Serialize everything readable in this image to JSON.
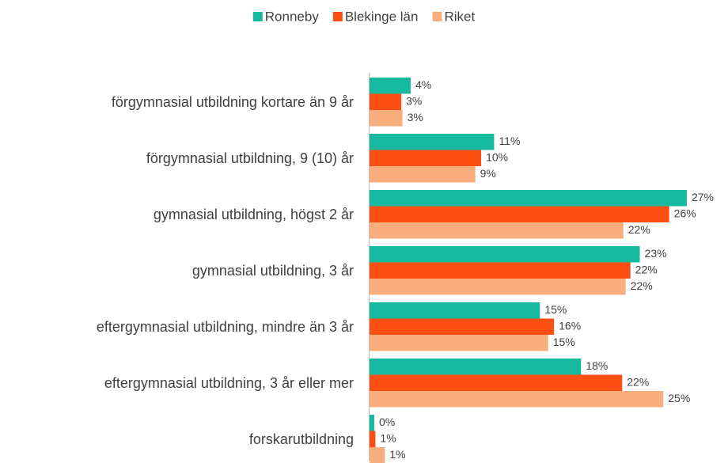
{
  "chart_data": {
    "type": "barh",
    "categories": [
      "förgymnasial utbildning kortare än 9 år",
      "förgymnasial utbildning, 9 (10) år",
      "gymnasial utbildning, högst 2 år",
      "gymnasial utbildning, 3 år",
      "eftergymnasial utbildning, mindre än 3 år",
      "eftergymnasial utbildning, 3 år eller mer",
      "forskarutbildning"
    ],
    "series": [
      {
        "name": "Ronneby",
        "color": "#17b99e",
        "values": [
          3.5,
          10.6,
          27.0,
          23.0,
          14.5,
          18.0,
          0.4
        ],
        "value_labels": [
          "4%",
          "11%",
          "27%",
          "23%",
          "15%",
          "18%",
          "0%"
        ]
      },
      {
        "name": "Blekinge län",
        "color": "#fc4f14",
        "values": [
          2.7,
          9.5,
          25.5,
          22.2,
          15.7,
          21.5,
          0.5
        ],
        "value_labels": [
          "3%",
          "10%",
          "26%",
          "22%",
          "16%",
          "22%",
          "1%"
        ]
      },
      {
        "name": "Riket",
        "color": "#f7ad7c",
        "values": [
          2.8,
          9.0,
          21.6,
          21.8,
          15.2,
          25.0,
          1.3
        ],
        "value_labels": [
          "3%",
          "9%",
          "22%",
          "22%",
          "15%",
          "25%",
          "1%"
        ]
      }
    ],
    "legend": "top"
  }
}
